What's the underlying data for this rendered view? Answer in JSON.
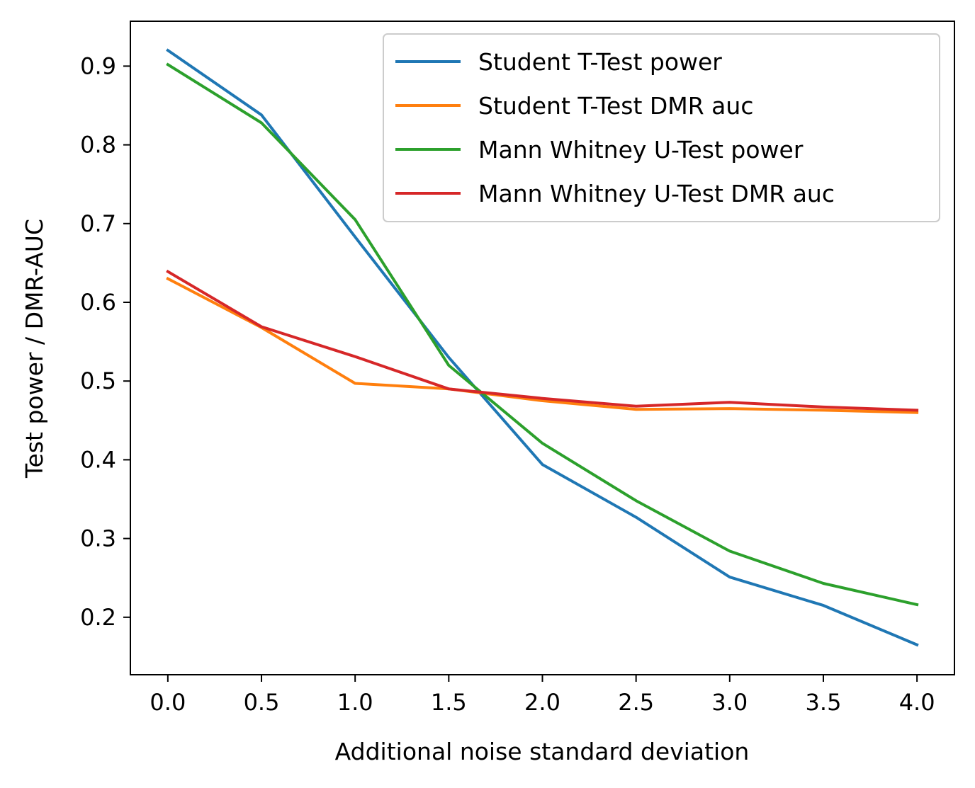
{
  "chart_data": {
    "type": "line",
    "title": "",
    "xlabel": "Additional noise standard deviation",
    "ylabel": "Test power / DMR-AUC",
    "x": [
      0.0,
      0.5,
      1.0,
      1.5,
      2.0,
      2.5,
      3.0,
      3.5,
      4.0
    ],
    "xticks": [
      "0.0",
      "0.5",
      "1.0",
      "1.5",
      "2.0",
      "2.5",
      "3.0",
      "3.5",
      "4.0"
    ],
    "yticks": [
      "0.2",
      "0.3",
      "0.4",
      "0.5",
      "0.6",
      "0.7",
      "0.8",
      "0.9"
    ],
    "xlim": [
      -0.2,
      4.2
    ],
    "ylim": [
      0.127,
      0.957
    ],
    "grid": false,
    "legend_position": "top-right",
    "series": [
      {
        "name": "Student T-Test power",
        "color": "#1f77b4",
        "values": [
          0.92,
          0.838,
          0.683,
          0.53,
          0.394,
          0.327,
          0.251,
          0.215,
          0.165
        ]
      },
      {
        "name": "Student T-Test DMR auc",
        "color": "#ff7f0e",
        "values": [
          0.63,
          0.568,
          0.497,
          0.49,
          0.475,
          0.464,
          0.465,
          0.463,
          0.46
        ]
      },
      {
        "name": "Mann Whitney U-Test power",
        "color": "#2ca02c",
        "values": [
          0.902,
          0.828,
          0.705,
          0.52,
          0.421,
          0.348,
          0.284,
          0.243,
          0.216
        ]
      },
      {
        "name": "Mann Whitney U-Test DMR auc",
        "color": "#d62728",
        "values": [
          0.639,
          0.569,
          0.531,
          0.49,
          0.478,
          0.468,
          0.473,
          0.467,
          0.463
        ]
      }
    ]
  }
}
